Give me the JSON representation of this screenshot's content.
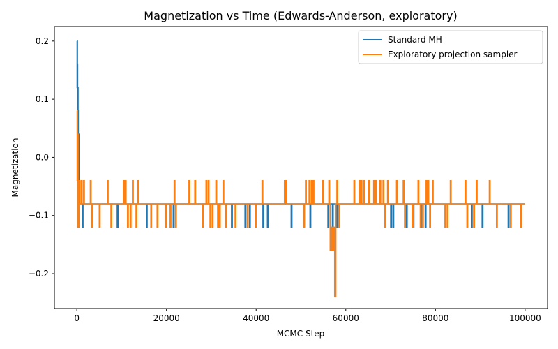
{
  "chart_data": {
    "type": "line",
    "title": "Magnetization vs Time (Edwards-Anderson, exploratory)",
    "xlabel": "MCMC Step",
    "ylabel": "Magnetization",
    "xlim": [
      -5000,
      105000
    ],
    "ylim": [
      -0.26,
      0.225
    ],
    "xticks": [
      0,
      20000,
      40000,
      60000,
      80000,
      100000
    ],
    "xtick_labels": [
      "0",
      "20000",
      "40000",
      "60000",
      "80000",
      "100000"
    ],
    "yticks": [
      -0.2,
      -0.1,
      0.0,
      0.1,
      0.2
    ],
    "ytick_labels": [
      "−0.2",
      "−0.1",
      "0.0",
      "0.1",
      "0.2"
    ],
    "grid": false,
    "legend_position": "top-right",
    "baseline": -0.08,
    "series": [
      {
        "name": "Standard MH",
        "color": "#1f77b4",
        "initial": [
          [
            0,
            0.2
          ],
          [
            50,
            0.12
          ],
          [
            100,
            0.2
          ],
          [
            150,
            0.16
          ],
          [
            200,
            0.04
          ],
          [
            250,
            0.12
          ],
          [
            300,
            0.08
          ],
          [
            350,
            0.0
          ],
          [
            400,
            -0.04
          ],
          [
            450,
            0.04
          ],
          [
            500,
            -0.04
          ],
          [
            550,
            -0.08
          ],
          [
            650,
            -0.04
          ],
          [
            700,
            -0.08
          ]
        ],
        "spikes": [
          [
            1200,
            -0.12
          ],
          [
            9000,
            -0.12
          ],
          [
            15500,
            -0.12
          ],
          [
            21500,
            -0.12
          ],
          [
            34500,
            -0.12
          ],
          [
            37500,
            -0.12
          ],
          [
            38500,
            -0.12
          ],
          [
            41500,
            -0.12
          ],
          [
            42500,
            -0.12
          ],
          [
            47800,
            -0.12
          ],
          [
            52000,
            -0.12
          ],
          [
            56000,
            -0.12
          ],
          [
            57000,
            -0.12
          ],
          [
            58000,
            -0.12
          ],
          [
            70000,
            -0.12
          ],
          [
            70500,
            -0.12
          ],
          [
            73500,
            -0.12
          ],
          [
            75000,
            -0.12
          ],
          [
            77000,
            -0.12
          ],
          [
            77700,
            -0.12
          ],
          [
            88000,
            -0.12
          ],
          [
            90400,
            -0.12
          ],
          [
            96200,
            -0.12
          ]
        ],
        "end": 100000
      },
      {
        "name": "Exploratory projection sampler",
        "color": "#ff7f0e",
        "initial": [
          [
            0,
            0.08
          ],
          [
            60,
            -0.04
          ],
          [
            120,
            0.08
          ],
          [
            180,
            -0.12
          ],
          [
            240,
            0.04
          ],
          [
            300,
            -0.04
          ],
          [
            360,
            -0.08
          ],
          [
            420,
            -0.12
          ],
          [
            500,
            -0.08
          ],
          [
            600,
            -0.04
          ],
          [
            700,
            -0.08
          ]
        ],
        "spikes": [
          [
            1000,
            -0.04
          ],
          [
            1500,
            -0.04
          ],
          [
            3000,
            -0.04
          ],
          [
            3300,
            -0.12
          ],
          [
            5000,
            -0.12
          ],
          [
            6800,
            -0.04
          ],
          [
            7600,
            -0.12
          ],
          [
            10400,
            -0.04
          ],
          [
            10800,
            -0.04
          ],
          [
            11300,
            -0.12
          ],
          [
            11900,
            -0.12
          ],
          [
            12400,
            -0.04
          ],
          [
            13600,
            -0.04
          ],
          [
            13200,
            -0.12
          ],
          [
            16500,
            -0.12
          ],
          [
            17900,
            -0.12
          ],
          [
            19800,
            -0.12
          ],
          [
            20800,
            -0.12
          ],
          [
            21700,
            -0.04
          ],
          [
            22000,
            -0.12
          ],
          [
            25000,
            -0.04
          ],
          [
            26300,
            -0.04
          ],
          [
            28000,
            -0.12
          ],
          [
            28800,
            -0.04
          ],
          [
            29300,
            -0.04
          ],
          [
            29700,
            -0.12
          ],
          [
            30200,
            -0.12
          ],
          [
            31000,
            -0.04
          ],
          [
            31400,
            -0.12
          ],
          [
            31800,
            -0.12
          ],
          [
            32600,
            -0.04
          ],
          [
            33200,
            -0.12
          ],
          [
            35300,
            -0.12
          ],
          [
            38000,
            -0.12
          ],
          [
            39800,
            -0.12
          ],
          [
            41300,
            -0.04
          ],
          [
            46300,
            -0.04
          ],
          [
            46500,
            -0.04
          ],
          [
            50600,
            -0.12
          ],
          [
            51000,
            -0.04
          ],
          [
            51800,
            -0.04
          ],
          [
            52300,
            -0.04
          ],
          [
            52700,
            -0.04
          ],
          [
            54800,
            -0.04
          ],
          [
            56200,
            -0.04
          ],
          [
            58000,
            -0.04
          ],
          [
            58400,
            -0.12
          ],
          [
            61800,
            -0.04
          ],
          [
            63000,
            -0.04
          ],
          [
            63400,
            -0.04
          ],
          [
            64000,
            -0.04
          ],
          [
            65100,
            -0.04
          ],
          [
            66200,
            -0.04
          ],
          [
            66600,
            -0.04
          ],
          [
            67600,
            -0.04
          ],
          [
            68300,
            -0.04
          ],
          [
            68700,
            -0.12
          ],
          [
            69300,
            -0.04
          ],
          [
            71300,
            -0.04
          ],
          [
            72800,
            -0.04
          ],
          [
            73100,
            -0.12
          ],
          [
            74800,
            -0.12
          ],
          [
            76100,
            -0.04
          ],
          [
            76600,
            -0.12
          ],
          [
            77100,
            -0.12
          ],
          [
            77900,
            -0.04
          ],
          [
            78300,
            -0.04
          ],
          [
            78700,
            -0.12
          ],
          [
            79300,
            -0.04
          ],
          [
            82100,
            -0.12
          ],
          [
            82600,
            -0.12
          ],
          [
            83300,
            -0.04
          ],
          [
            86600,
            -0.04
          ],
          [
            87000,
            -0.12
          ],
          [
            88500,
            -0.12
          ],
          [
            89100,
            -0.04
          ],
          [
            92000,
            -0.04
          ],
          [
            93600,
            -0.12
          ],
          [
            96700,
            -0.12
          ],
          [
            99000,
            -0.12
          ]
        ],
        "dip": [
          [
            56500,
            -0.08
          ],
          [
            56500,
            -0.16
          ],
          [
            56800,
            -0.16
          ],
          [
            56800,
            -0.12
          ],
          [
            57000,
            -0.12
          ],
          [
            57000,
            -0.16
          ],
          [
            57300,
            -0.16
          ],
          [
            57300,
            -0.12
          ],
          [
            57500,
            -0.12
          ],
          [
            57500,
            -0.24
          ],
          [
            57800,
            -0.24
          ],
          [
            57800,
            -0.08
          ]
        ],
        "end": 100000
      }
    ]
  }
}
